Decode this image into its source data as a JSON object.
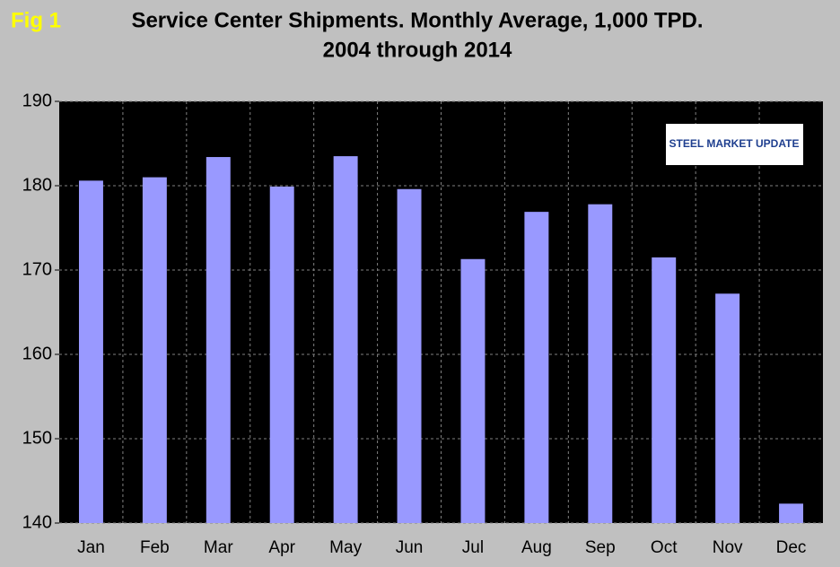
{
  "chart_data": {
    "type": "bar",
    "figure_label": "Fig 1",
    "title": "Service Center Shipments. Monthly Average, 1,000 TPD.",
    "subtitle": "2004 through 2014",
    "logo": "STEEL MARKET UPDATE",
    "categories": [
      "Jan",
      "Feb",
      "Mar",
      "Apr",
      "May",
      "Jun",
      "Jul",
      "Aug",
      "Sep",
      "Oct",
      "Nov",
      "Dec"
    ],
    "values": [
      180.6,
      181.0,
      183.4,
      179.9,
      183.5,
      179.6,
      171.3,
      176.9,
      177.8,
      171.5,
      167.2,
      142.3
    ],
    "color": "#9999ff",
    "ylim": [
      140,
      190
    ],
    "yticks": [
      140,
      150,
      160,
      170,
      180,
      190
    ],
    "grid": true
  }
}
